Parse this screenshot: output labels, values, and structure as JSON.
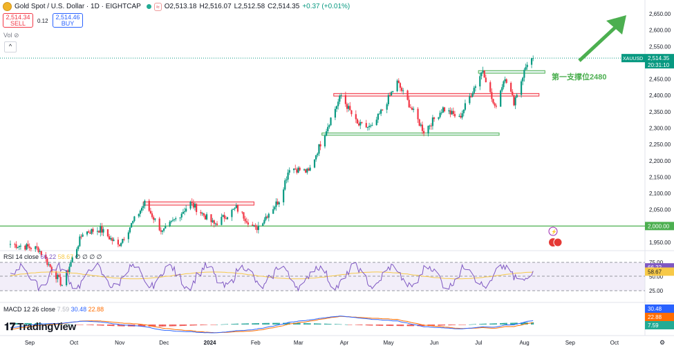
{
  "header": {
    "symbol_title": "Gold Spot / U.S. Dollar · 1D · EIGHTCAP",
    "open": "O2,513.18",
    "high": "H2,516.07",
    "low": "L2,512.58",
    "close": "C2,514.35",
    "change": "+0.37 (+0.01%)",
    "approx_icon": "≈"
  },
  "trade": {
    "sell_price": "2,514.34",
    "sell_label": "SELL",
    "spread": "0.12",
    "buy_price": "2,514.46",
    "buy_label": "BUY"
  },
  "volume_label": "Vol",
  "collapse_icon": "^",
  "indicators": {
    "rsi_label": "RSI 14 close",
    "rsi_value": "66.22",
    "rsi_ma": "58.67",
    "rsi_zeros": "∅ ∅ ∅ ∅",
    "macd_label": "MACD 12 26 close",
    "macd_hist": "7.59",
    "macd_line": "30.48",
    "macd_signal": "22.88"
  },
  "logo": "TradingView",
  "chart_data": {
    "type": "candlestick",
    "symbol": "XAUUSD",
    "last_price": "2,514.35",
    "countdown": "20:31:10",
    "level_label": "2,000.00",
    "price_axis_ticks": [
      "2,650.00",
      "2,600.00",
      "2,550.00",
      "2,500.00",
      "2,450.00",
      "2,400.00",
      "2,350.00",
      "2,300.00",
      "2,250.00",
      "2,200.00",
      "2,150.00",
      "2,100.00",
      "2,050.00",
      "2,000.00",
      "1,950.00"
    ],
    "rsi_axis_ticks": [
      "75.00",
      "50.00",
      "25.00"
    ],
    "time_axis": [
      "Sep",
      "Oct",
      "Nov",
      "Dec",
      "2024",
      "Feb",
      "Mar",
      "Apr",
      "May",
      "Jun",
      "Jul",
      "Aug",
      "Sep",
      "Oct"
    ],
    "support_annotation": "第一支撑位2480",
    "rsi_last": "66.22",
    "rsi_ma_last": "58.67",
    "macd_last": "30.48",
    "signal_last": "22.88",
    "hist_last": "7.59",
    "horizontal_level": 2000,
    "zones": [
      {
        "color": "red",
        "from": 2064,
        "to": 2074
      },
      {
        "color": "red",
        "from": 2398,
        "to": 2406
      },
      {
        "color": "green",
        "from": 2278,
        "to": 2285
      },
      {
        "color": "green",
        "from": 2468,
        "to": 2476
      }
    ],
    "price_path": [
      [
        "2023-09-01",
        1945
      ],
      [
        "2023-09-20",
        1930
      ],
      [
        "2023-10-06",
        1820
      ],
      [
        "2023-10-20",
        1980
      ],
      [
        "2023-11-01",
        1990
      ],
      [
        "2023-11-13",
        1940
      ],
      [
        "2023-12-01",
        2070
      ],
      [
        "2023-12-13",
        1980
      ],
      [
        "2024-01-01",
        2070
      ],
      [
        "2024-01-17",
        2005
      ],
      [
        "2024-02-01",
        2055
      ],
      [
        "2024-02-14",
        1990
      ],
      [
        "2024-03-01",
        2080
      ],
      [
        "2024-03-08",
        2180
      ],
      [
        "2024-03-21",
        2165
      ],
      [
        "2024-04-05",
        2330
      ],
      [
        "2024-04-12",
        2400
      ],
      [
        "2024-04-23",
        2310
      ],
      [
        "2024-05-03",
        2300
      ],
      [
        "2024-05-20",
        2440
      ],
      [
        "2024-06-07",
        2290
      ],
      [
        "2024-06-20",
        2360
      ],
      [
        "2024-07-01",
        2330
      ],
      [
        "2024-07-17",
        2480
      ],
      [
        "2024-07-25",
        2360
      ],
      [
        "2024-08-01",
        2460
      ],
      [
        "2024-08-07",
        2380
      ],
      [
        "2024-08-16",
        2500
      ],
      [
        "2024-08-20",
        2514.35
      ]
    ]
  }
}
